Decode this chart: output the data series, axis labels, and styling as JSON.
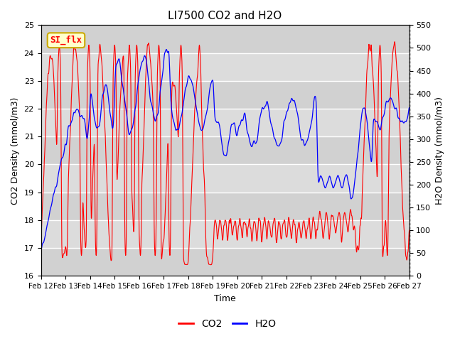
{
  "title": "LI7500 CO2 and H2O",
  "xlabel": "Time",
  "ylabel_left": "CO2 Density (mmol/m3)",
  "ylabel_right": "H2O Density (mmol/m3)",
  "ylim_left": [
    16.0,
    25.0
  ],
  "ylim_right": [
    0,
    550
  ],
  "yticks_left": [
    16.0,
    17.0,
    18.0,
    19.0,
    20.0,
    21.0,
    22.0,
    23.0,
    24.0,
    25.0
  ],
  "yticks_right": [
    0,
    50,
    100,
    150,
    200,
    250,
    300,
    350,
    400,
    450,
    500,
    550
  ],
  "xtick_labels": [
    "Feb 12",
    "Feb 13",
    "Feb 14",
    "Feb 15",
    "Feb 16",
    "Feb 17",
    "Feb 18",
    "Feb 19",
    "Feb 20",
    "Feb 21",
    "Feb 22",
    "Feb 23",
    "Feb 24",
    "Feb 25",
    "Feb 26",
    "Feb 27"
  ],
  "co2_color": "#FF0000",
  "h2o_color": "#0000FF",
  "background_color": "#FFFFFF",
  "plot_bg_color": "#DCDCDC",
  "annotation_text": "SI_flx",
  "annotation_bg": "#FFFFCC",
  "annotation_edge": "#CCAA00",
  "legend_co2": "CO2",
  "legend_h2o": "H2O",
  "n_points": 1500,
  "days": 15
}
